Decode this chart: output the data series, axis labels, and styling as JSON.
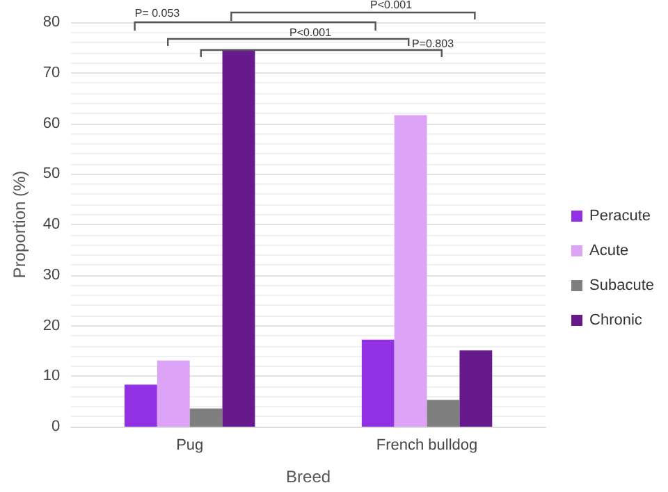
{
  "chart_data": {
    "type": "bar",
    "xlabel": "Breed",
    "ylabel": "Proportion (%)",
    "categories": [
      "Pug",
      "French bulldog"
    ],
    "series": [
      {
        "name": "Peracute",
        "color": "#9230e3",
        "values": [
          8.3,
          17.2
        ]
      },
      {
        "name": "Acute",
        "color": "#dda3f7",
        "values": [
          13.1,
          61.6
        ]
      },
      {
        "name": "Subacute",
        "color": "#7f7f7f",
        "values": [
          3.6,
          5.3
        ]
      },
      {
        "name": "Chronic",
        "color": "#661a8c",
        "values": [
          74.5,
          15.1
        ]
      }
    ],
    "ylim": [
      0,
      80
    ],
    "yticks": [
      0,
      10,
      20,
      30,
      40,
      50,
      60,
      70,
      80
    ],
    "grid": "y",
    "legend": "right",
    "annotations": [
      "P= 0.053",
      "P<0.001",
      "P<0.001",
      "P=0.803"
    ]
  }
}
